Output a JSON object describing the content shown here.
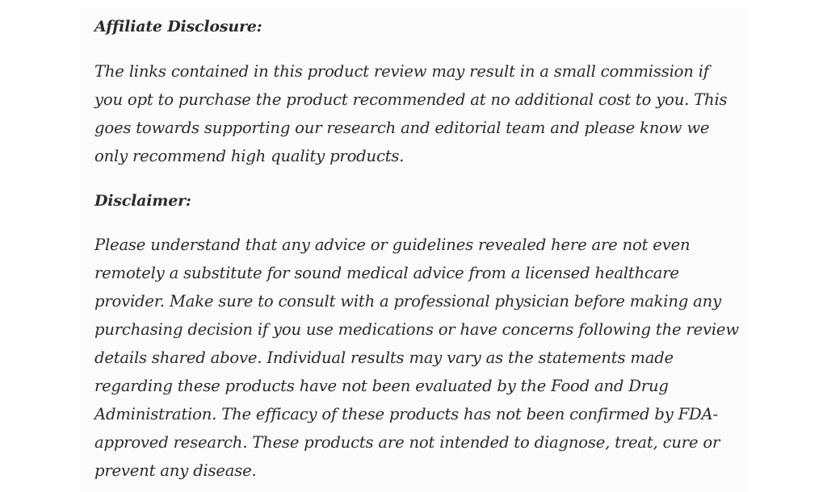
{
  "affiliate": {
    "heading": "Affiliate Disclosure:",
    "lines": [
      "The links contained in this product review may result in a small commission if",
      "you opt to purchase the product recommended at no additional cost to you. This",
      "goes towards supporting our research and editorial team and please know we",
      "only recommend high quality products."
    ]
  },
  "disclaimer": {
    "heading": "Disclaimer:",
    "lines": [
      "Please understand that any advice or guidelines revealed here are not even",
      "remotely a substitute for sound medical advice from a licensed healthcare",
      "provider. Make sure to consult with a professional physician before making any",
      "purchasing decision if you use medications or have concerns following the review",
      "details shared above. Individual results may vary as the statements made",
      "regarding these products have not been evaluated by the Food and Drug",
      "Administration. The efficacy of these products has not been confirmed by FDA-",
      "approved research. These products are not intended to diagnose, treat, cure or",
      "prevent any disease."
    ]
  }
}
